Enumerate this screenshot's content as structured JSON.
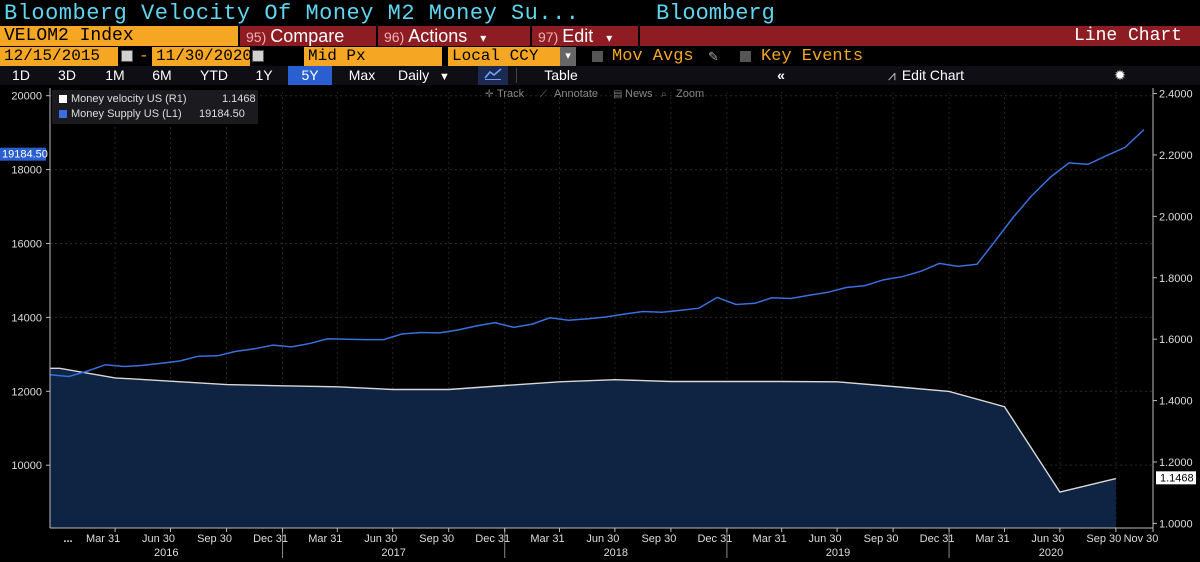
{
  "header": {
    "title": "Bloomberg Velocity Of Money M2 Money Su...",
    "brand": "Bloomberg"
  },
  "toolbar": {
    "ticker": "VELOM2 Index",
    "compare": {
      "num": "95)",
      "label": "Compare"
    },
    "actions": {
      "num": "96)",
      "label": "Actions",
      "arrow": "▾"
    },
    "edit": {
      "num": "97)",
      "label": "Edit",
      "arrow": "▾"
    },
    "chart_type": "Line Chart"
  },
  "settings": {
    "start_date": "12/15/2015",
    "dash": "-",
    "end_date": "11/30/2020",
    "price_field": "Mid Px",
    "currency": "Local CCY",
    "mov_avgs": "Mov Avgs",
    "key_events": "Key Events"
  },
  "ranges": {
    "items": [
      "1D",
      "3D",
      "1M",
      "6M",
      "YTD",
      "1Y",
      "5Y",
      "Max"
    ],
    "selected": "5Y",
    "frequency": "Daily",
    "table_label": "Table",
    "edit_chart_label": "Edit Chart"
  },
  "chart_tools": {
    "track": "Track",
    "annotate": "Annotate",
    "news": "News",
    "zoom": "Zoom"
  },
  "colors": {
    "velocity_line": "#d8d8d8",
    "supply_line": "#3a6fe0",
    "area_fill": "#0f2342",
    "axis_text": "#dddddd",
    "accent_orange": "#f5a623",
    "accent_red": "#8e1d23",
    "title_cyan": "#5ed6f0"
  },
  "chart_data": {
    "type": "line",
    "legend": [
      {
        "name": "Money velocity US (R1)",
        "value": "1.1468",
        "color": "#ffffff"
      },
      {
        "name": "Money Supply US (L1)",
        "value": "19184.50",
        "color": "#3a6fe0"
      }
    ],
    "left_axis": {
      "ticks": [
        10000,
        12000,
        14000,
        16000,
        18000,
        20000
      ],
      "range": [
        8300,
        20100
      ],
      "current_label": "19184.50"
    },
    "right_axis": {
      "ticks": [
        "1.0000",
        "1.2000",
        "1.4000",
        "1.6000",
        "1.8000",
        "2.0000",
        "2.2000",
        "2.4000"
      ],
      "range": [
        0.985,
        2.405
      ],
      "current_label": "1.1468"
    },
    "x_range": [
      "2015-12-15",
      "2020-11-30"
    ],
    "x_ticks": [
      {
        "date": "2016-03-31",
        "label": "Mar 31"
      },
      {
        "date": "2016-06-30",
        "label": "Jun 30"
      },
      {
        "date": "2016-09-30",
        "label": "Sep 30"
      },
      {
        "date": "2016-12-31",
        "label": "Dec 31"
      },
      {
        "date": "2017-03-31",
        "label": "Mar 31"
      },
      {
        "date": "2017-06-30",
        "label": "Jun 30"
      },
      {
        "date": "2017-09-30",
        "label": "Sep 30"
      },
      {
        "date": "2017-12-31",
        "label": "Dec 31"
      },
      {
        "date": "2018-03-31",
        "label": "Mar 31"
      },
      {
        "date": "2018-06-30",
        "label": "Jun 30"
      },
      {
        "date": "2018-09-30",
        "label": "Sep 30"
      },
      {
        "date": "2018-12-31",
        "label": "Dec 31"
      },
      {
        "date": "2019-03-31",
        "label": "Mar 31"
      },
      {
        "date": "2019-06-30",
        "label": "Jun 30"
      },
      {
        "date": "2019-09-30",
        "label": "Sep 30"
      },
      {
        "date": "2019-12-31",
        "label": "Dec 31"
      },
      {
        "date": "2020-03-31",
        "label": "Mar 31"
      },
      {
        "date": "2020-06-30",
        "label": "Jun 30"
      },
      {
        "date": "2020-09-30",
        "label": "Sep 30"
      },
      {
        "date": "2020-11-30",
        "label": "Nov 30"
      }
    ],
    "first_tick_label": "...",
    "year_labels": [
      "2016",
      "2017",
      "2018",
      "2019",
      "2020"
    ],
    "series": [
      {
        "name": "Money velocity US (R1)",
        "axis": "right",
        "style": "area",
        "x": [
          "2015-12-31",
          "2016-03-31",
          "2016-06-30",
          "2016-09-30",
          "2016-12-31",
          "2017-03-31",
          "2017-06-30",
          "2017-09-30",
          "2017-12-31",
          "2018-03-31",
          "2018-06-30",
          "2018-09-30",
          "2018-12-31",
          "2019-03-31",
          "2019-06-30",
          "2019-09-30",
          "2019-12-31",
          "2020-03-31",
          "2020-06-30",
          "2020-09-30"
        ],
        "y": [
          1.505,
          1.474,
          1.463,
          1.452,
          1.448,
          1.445,
          1.436,
          1.436,
          1.449,
          1.461,
          1.468,
          1.462,
          1.462,
          1.462,
          1.461,
          1.446,
          1.43,
          1.38,
          1.102,
          1.146
        ]
      },
      {
        "name": "Money Supply US (L1)",
        "axis": "left",
        "style": "line",
        "x": [
          "2015-12-15",
          "2016-01-15",
          "2016-02-15",
          "2016-03-15",
          "2016-04-15",
          "2016-05-15",
          "2016-06-15",
          "2016-07-15",
          "2016-08-15",
          "2016-09-15",
          "2016-10-15",
          "2016-11-15",
          "2016-12-15",
          "2017-01-15",
          "2017-02-15",
          "2017-03-15",
          "2017-04-15",
          "2017-05-15",
          "2017-06-15",
          "2017-07-15",
          "2017-08-15",
          "2017-09-15",
          "2017-10-15",
          "2017-11-15",
          "2017-12-15",
          "2018-01-15",
          "2018-02-15",
          "2018-03-15",
          "2018-04-15",
          "2018-05-15",
          "2018-06-15",
          "2018-07-15",
          "2018-08-15",
          "2018-09-15",
          "2018-10-15",
          "2018-11-15",
          "2018-12-15",
          "2019-01-15",
          "2019-02-15",
          "2019-03-15",
          "2019-04-15",
          "2019-05-15",
          "2019-06-15",
          "2019-07-15",
          "2019-08-15",
          "2019-09-15",
          "2019-10-15",
          "2019-11-15",
          "2019-12-15",
          "2020-01-15",
          "2020-02-15",
          "2020-03-15",
          "2020-04-15",
          "2020-05-15",
          "2020-06-15",
          "2020-07-15",
          "2020-08-15",
          "2020-09-15",
          "2020-10-15",
          "2020-11-15"
        ],
        "y": [
          12450,
          12400,
          12550,
          12720,
          12670,
          12700,
          12760,
          12820,
          12950,
          12960,
          13080,
          13150,
          13250,
          13200,
          13300,
          13420,
          13410,
          13400,
          13400,
          13550,
          13590,
          13580,
          13660,
          13770,
          13860,
          13730,
          13820,
          13990,
          13920,
          13960,
          14010,
          14090,
          14160,
          14140,
          14190,
          14250,
          14540,
          14350,
          14380,
          14530,
          14510,
          14600,
          14680,
          14810,
          14860,
          15020,
          15100,
          15250,
          15460,
          15380,
          15440,
          16050,
          16720,
          17300,
          17800,
          18180,
          18140,
          18380,
          18600,
          19080
        ]
      }
    ]
  }
}
